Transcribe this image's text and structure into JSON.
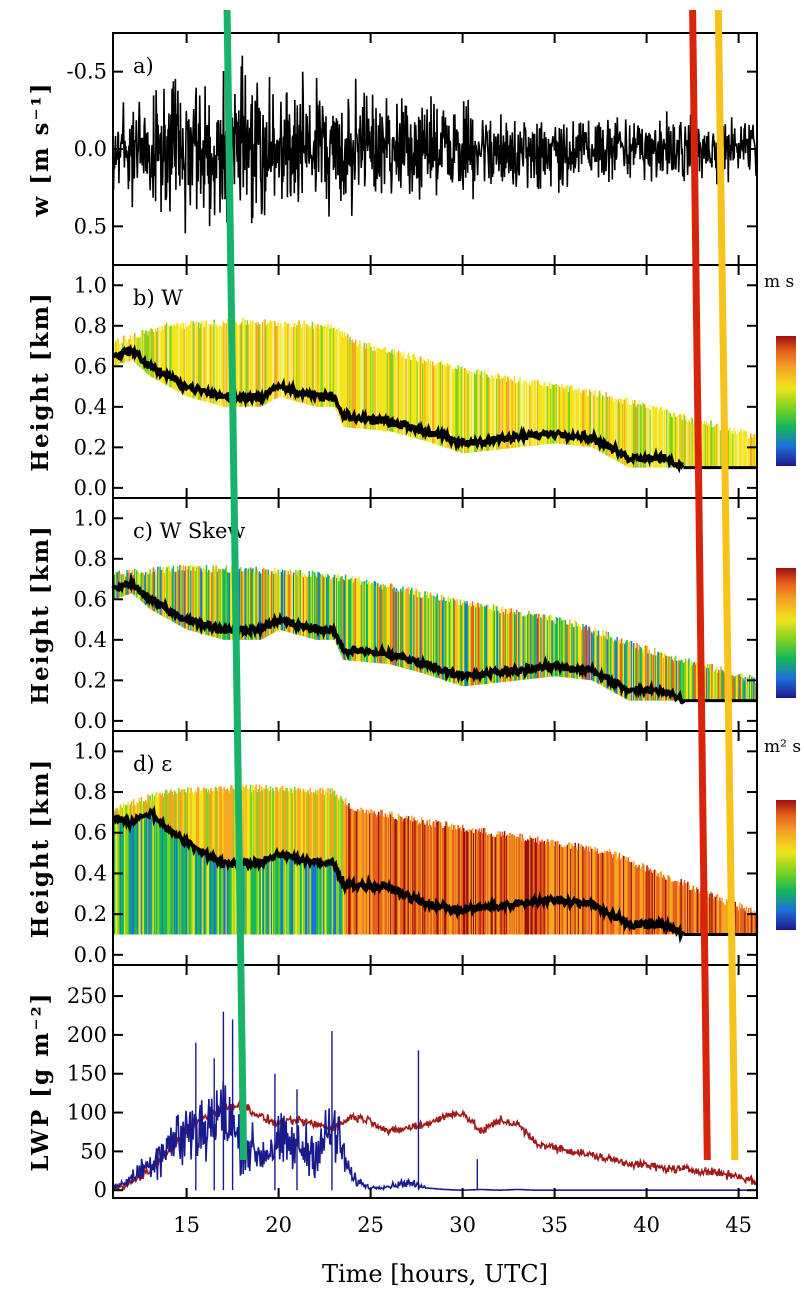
{
  "chart_data": {
    "type": "line",
    "xlabel": "Time [hours, UTC]",
    "xlim": [
      11,
      46
    ],
    "xticks": [
      15,
      20,
      25,
      30,
      35,
      40,
      45
    ],
    "vertical_lines": [
      {
        "color": "#19b26b",
        "x_top": 17.2,
        "x_bottom": 18.1
      },
      {
        "color": "#d9240c",
        "x_top": 42.5,
        "x_bottom": 43.3
      },
      {
        "color": "#f7c31a",
        "x_top": 43.9,
        "x_bottom": 44.8
      }
    ],
    "panels": [
      {
        "id": "a",
        "type": "line",
        "label": "a)",
        "ylabel": "w [m s⁻¹]",
        "ylim": [
          0.75,
          -0.75
        ],
        "yticks": [
          "-0.5",
          "0.0",
          "0.5"
        ],
        "ytick_values": [
          -0.5,
          0.0,
          0.5
        ],
        "series": [
          {
            "values_envelope": [
              [
                11,
                0.55
              ],
              [
                15,
                0.72
              ],
              [
                18,
                0.75
              ],
              [
                23,
                0.65
              ],
              [
                30,
                0.45
              ],
              [
                40,
                0.35
              ],
              [
                46,
                0.3
              ]
            ]
          }
        ]
      },
      {
        "id": "b",
        "type": "heatmap",
        "label": "b) W",
        "ylabel": "Height [km]",
        "ylim": [
          -0.05,
          1.1
        ],
        "yticks": [
          "0.0",
          "0.2",
          "0.4",
          "0.6",
          "0.8",
          "1.0"
        ],
        "ytick_values": [
          0.0,
          0.2,
          0.4,
          0.6,
          0.8,
          1.0
        ],
        "unit": "m s",
        "colors": [
          "#1a1a8c",
          "#1e6fd8",
          "#14b85a",
          "#7ed321",
          "#f2e51d",
          "#f5a623",
          "#e8601c",
          "#9b0f0f"
        ],
        "top_boundary": [
          [
            11,
            0.72
          ],
          [
            14,
            0.8
          ],
          [
            18,
            0.82
          ],
          [
            23,
            0.8
          ],
          [
            24,
            0.72
          ],
          [
            30,
            0.58
          ],
          [
            35,
            0.5
          ],
          [
            38,
            0.45
          ],
          [
            42,
            0.35
          ],
          [
            46,
            0.25
          ]
        ],
        "cloud_base": [
          [
            11,
            0.65
          ],
          [
            12,
            0.68
          ],
          [
            13,
            0.6
          ],
          [
            14,
            0.55
          ],
          [
            15,
            0.5
          ],
          [
            17,
            0.45
          ],
          [
            19,
            0.45
          ],
          [
            20,
            0.5
          ],
          [
            22,
            0.45
          ],
          [
            23,
            0.45
          ],
          [
            23.5,
            0.35
          ],
          [
            26,
            0.33
          ],
          [
            28,
            0.28
          ],
          [
            30,
            0.22
          ],
          [
            33,
            0.25
          ],
          [
            35,
            0.27
          ],
          [
            37,
            0.25
          ],
          [
            39,
            0.15
          ],
          [
            41,
            0.15
          ],
          [
            42,
            0.1
          ],
          [
            46,
            0.1
          ]
        ]
      },
      {
        "id": "c",
        "type": "heatmap",
        "label": "c) W Skew",
        "ylabel": "Height [km]",
        "ylim": [
          -0.05,
          1.1
        ],
        "yticks": [
          "0.0",
          "0.2",
          "0.4",
          "0.6",
          "0.8",
          "1.0"
        ],
        "ytick_values": [
          0.0,
          0.2,
          0.4,
          0.6,
          0.8,
          1.0
        ],
        "unit": "",
        "colors": [
          "#1a1a8c",
          "#1e6fd8",
          "#14b85a",
          "#7ed321",
          "#f2e51d",
          "#f5a623",
          "#e8601c",
          "#9b0f0f"
        ],
        "top_boundary": [
          [
            11,
            0.72
          ],
          [
            14,
            0.75
          ],
          [
            18,
            0.75
          ],
          [
            22,
            0.72
          ],
          [
            24,
            0.7
          ],
          [
            28,
            0.62
          ],
          [
            32,
            0.55
          ],
          [
            36,
            0.48
          ],
          [
            40,
            0.35
          ],
          [
            44,
            0.25
          ],
          [
            46,
            0.2
          ]
        ],
        "cloud_base": [
          [
            11,
            0.65
          ],
          [
            12,
            0.68
          ],
          [
            13,
            0.6
          ],
          [
            14,
            0.55
          ],
          [
            15,
            0.5
          ],
          [
            17,
            0.45
          ],
          [
            19,
            0.45
          ],
          [
            20,
            0.5
          ],
          [
            22,
            0.45
          ],
          [
            23,
            0.45
          ],
          [
            23.5,
            0.35
          ],
          [
            26,
            0.33
          ],
          [
            28,
            0.28
          ],
          [
            30,
            0.22
          ],
          [
            33,
            0.25
          ],
          [
            35,
            0.27
          ],
          [
            37,
            0.25
          ],
          [
            39,
            0.15
          ],
          [
            41,
            0.15
          ],
          [
            42,
            0.1
          ],
          [
            46,
            0.1
          ]
        ]
      },
      {
        "id": "d",
        "type": "heatmap",
        "label": "d) ε",
        "ylabel": "Height [km]",
        "ylim": [
          -0.05,
          1.1
        ],
        "yticks": [
          "0.0",
          "0.2",
          "0.4",
          "0.6",
          "0.8",
          "1.0"
        ],
        "ytick_values": [
          0.0,
          0.2,
          0.4,
          0.6,
          0.8,
          1.0
        ],
        "unit": "m² s",
        "colors": [
          "#1a1a8c",
          "#1e6fd8",
          "#14b85a",
          "#7ed321",
          "#f2e51d",
          "#f5a623",
          "#e8601c",
          "#9b0f0f"
        ],
        "top_boundary": [
          [
            11,
            0.72
          ],
          [
            14,
            0.8
          ],
          [
            18,
            0.82
          ],
          [
            23,
            0.8
          ],
          [
            24,
            0.72
          ],
          [
            30,
            0.62
          ],
          [
            35,
            0.55
          ],
          [
            38,
            0.5
          ],
          [
            42,
            0.35
          ],
          [
            46,
            0.2
          ]
        ],
        "bottom_boundary": 0.1,
        "cloud_base": [
          [
            11,
            0.68
          ],
          [
            12,
            0.65
          ],
          [
            13,
            0.7
          ],
          [
            14,
            0.62
          ],
          [
            15,
            0.55
          ],
          [
            17,
            0.45
          ],
          [
            19,
            0.45
          ],
          [
            20,
            0.5
          ],
          [
            22,
            0.45
          ],
          [
            23,
            0.45
          ],
          [
            23.5,
            0.35
          ],
          [
            26,
            0.33
          ],
          [
            28,
            0.25
          ],
          [
            30,
            0.22
          ],
          [
            33,
            0.25
          ],
          [
            35,
            0.27
          ],
          [
            37,
            0.25
          ],
          [
            39,
            0.15
          ],
          [
            41,
            0.15
          ],
          [
            42,
            0.1
          ],
          [
            46,
            0.1
          ]
        ]
      },
      {
        "id": "e",
        "type": "line",
        "label": "",
        "ylabel": "LWP [g m⁻²]",
        "ylim": [
          -10,
          290
        ],
        "yticks": [
          "0",
          "50",
          "100",
          "150",
          "200",
          "250"
        ],
        "ytick_values": [
          0,
          50,
          100,
          150,
          200,
          250
        ],
        "series": [
          {
            "color": "#a01818",
            "x": [
              11,
              12,
              13,
              14,
              15,
              16,
              17,
              18,
              19,
              20,
              21,
              22,
              23,
              24,
              25,
              26,
              27,
              28,
              29,
              30,
              31,
              32,
              33,
              34,
              35,
              36,
              37,
              38,
              39,
              40,
              41,
              42,
              43,
              44,
              45,
              46
            ],
            "values": [
              2,
              10,
              25,
              50,
              75,
              95,
              105,
              110,
              95,
              85,
              90,
              85,
              80,
              95,
              90,
              75,
              80,
              85,
              95,
              100,
              75,
              90,
              85,
              60,
              55,
              50,
              45,
              40,
              35,
              32,
              28,
              27,
              25,
              22,
              18,
              10
            ]
          },
          {
            "color": "#1a1a8c",
            "x": [
              11,
              12,
              13,
              14,
              15,
              16,
              17,
              18,
              19,
              20,
              21,
              22,
              23,
              24,
              25,
              26,
              27,
              28,
              29,
              30,
              31,
              32,
              33,
              34,
              35,
              36,
              37,
              38,
              39,
              40,
              41,
              42,
              43,
              44,
              45,
              46
            ],
            "values": [
              2,
              15,
              35,
              60,
              75,
              85,
              95,
              60,
              45,
              60,
              55,
              50,
              80,
              15,
              3,
              5,
              10,
              3,
              1,
              0,
              1,
              0,
              1,
              0,
              0,
              0,
              0,
              0,
              0,
              0,
              0,
              0,
              0,
              0,
              0,
              0
            ],
            "spikes": [
              [
                15.5,
                190
              ],
              [
                16.5,
                170
              ],
              [
                17.0,
                230
              ],
              [
                17.5,
                220
              ],
              [
                19.8,
                150
              ],
              [
                21.0,
                130
              ],
              [
                22.9,
                205
              ],
              [
                27.6,
                180
              ],
              [
                30.8,
                40
              ]
            ]
          }
        ]
      }
    ]
  }
}
